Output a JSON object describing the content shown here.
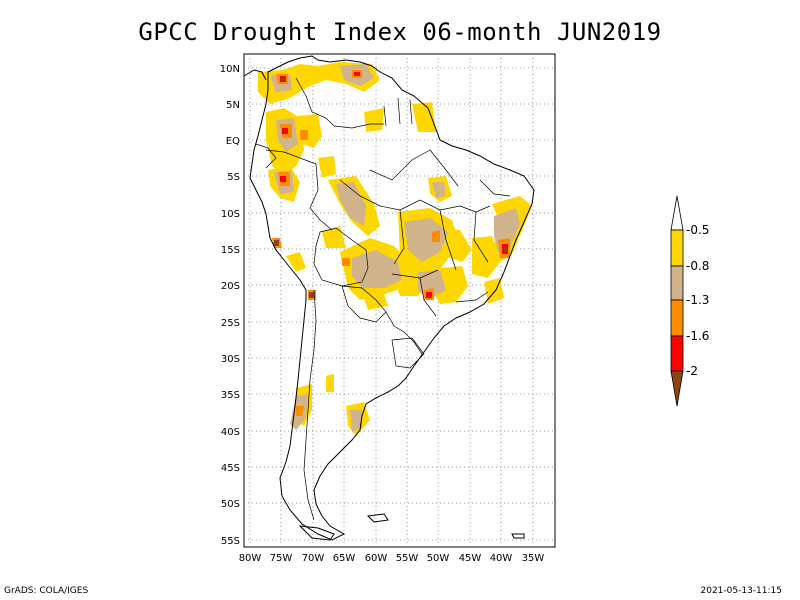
{
  "title": "GPCC Drought Index 06-month JUN2019",
  "map": {
    "lon_range": [
      -81,
      -32
    ],
    "lat_range": [
      -56,
      13
    ],
    "lat_ticks": [
      "10N",
      "5N",
      "EQ",
      "5S",
      "10S",
      "15S",
      "20S",
      "25S",
      "30S",
      "35S",
      "40S",
      "45S",
      "50S",
      "55S"
    ],
    "lon_ticks": [
      "80W",
      "75W",
      "70W",
      "65W",
      "60W",
      "55W",
      "50W",
      "45W",
      "40W",
      "35W"
    ],
    "grid": "dotted",
    "ocean_color": "#ffffff"
  },
  "legend": {
    "placement": "right",
    "labels": [
      "-0.5",
      "-0.8",
      "-1.3",
      "-1.6",
      "-2"
    ],
    "colors": [
      "#ffffff",
      "#ffd700",
      "#d2b48c",
      "#ff8c00",
      "#ff0000",
      "#8b4513"
    ]
  },
  "footer": {
    "left": "GrADS: COLA/IGES",
    "right": "2021-05-13-11:15"
  }
}
